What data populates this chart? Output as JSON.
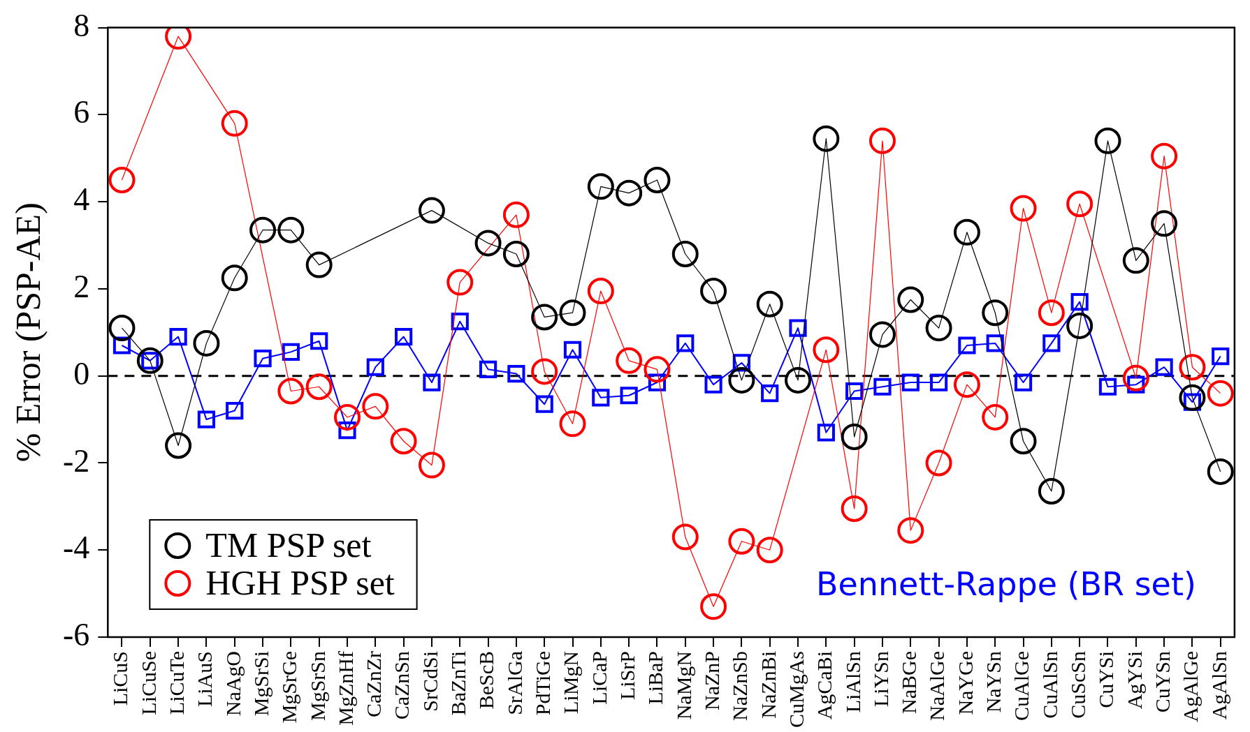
{
  "chart_data": {
    "type": "line",
    "ylabel": "% Error (PSP-AE)",
    "categories": [
      "LiCuS",
      "LiCuSe",
      "LiCuTe",
      "LiAuS",
      "NaAgO",
      "MgSrSi",
      "MgSrGe",
      "MgSrSn",
      "MgZnHf",
      "CaZnZr",
      "CaZnSn",
      "SrCdSi",
      "BaZnTi",
      "BeScB",
      "SrAlGa",
      "PdTiGe",
      "LiMgN",
      "LiCaP",
      "LiSrP",
      "LiBaP",
      "NaMgN",
      "NaZnP",
      "NaZnSb",
      "NaZnBi",
      "CuMgAs",
      "AgCaBi",
      "LiAlSn",
      "LiYSn",
      "NaBGe",
      "NaAlGe",
      "NaYGe",
      "NaYSn",
      "CuAlGe",
      "CuAlSn",
      "CuScSn",
      "CuYSi",
      "AgYSi",
      "CuYSn",
      "AgAlGe",
      "AgAlSn"
    ],
    "series": [
      {
        "name": "TM PSP set",
        "color": "#000000",
        "marker": "circle",
        "values": [
          1.1,
          0.35,
          -1.6,
          0.75,
          2.25,
          3.35,
          3.35,
          2.55,
          null,
          null,
          null,
          3.8,
          null,
          3.05,
          2.8,
          1.35,
          1.45,
          4.35,
          4.2,
          4.5,
          2.8,
          1.95,
          -0.1,
          1.65,
          -0.1,
          5.45,
          -1.4,
          0.95,
          1.75,
          1.1,
          3.3,
          1.45,
          -1.5,
          -2.65,
          1.15,
          5.4,
          2.65,
          3.5,
          -0.5,
          -2.2
        ]
      },
      {
        "name": "HGH PSP set",
        "color": "#ff0000",
        "marker": "circle",
        "values": [
          4.5,
          null,
          7.8,
          null,
          5.8,
          null,
          -0.35,
          -0.25,
          -0.95,
          -0.7,
          -1.5,
          -2.05,
          2.15,
          null,
          3.7,
          0.1,
          -1.1,
          1.95,
          0.35,
          0.15,
          -3.7,
          -5.3,
          -3.8,
          -4.0,
          null,
          0.6,
          -3.05,
          5.4,
          -3.55,
          -2.0,
          -0.2,
          -0.95,
          3.85,
          1.45,
          3.95,
          null,
          -0.05,
          5.05,
          0.2,
          -0.4
        ]
      },
      {
        "name": "Bennett-Rappe (BR set)",
        "color": "#0000ff",
        "marker": "square",
        "values": [
          0.7,
          0.35,
          0.9,
          -1.0,
          -0.8,
          0.4,
          0.55,
          0.8,
          -1.25,
          0.2,
          0.9,
          -0.15,
          1.25,
          0.15,
          0.05,
          -0.65,
          0.6,
          -0.5,
          -0.45,
          -0.15,
          0.75,
          -0.2,
          0.3,
          -0.4,
          1.1,
          -1.3,
          -0.35,
          -0.25,
          -0.15,
          -0.15,
          0.7,
          0.75,
          -0.15,
          0.75,
          1.7,
          -0.25,
          -0.2,
          0.2,
          -0.6,
          0.45
        ]
      }
    ],
    "ylim": [
      -6,
      8
    ],
    "yticks": [
      -6,
      -4,
      -2,
      0,
      2,
      4,
      6,
      8
    ],
    "ref_lines": [
      {
        "axis": "y",
        "value": 0,
        "color": "#000000",
        "line_style": "dashed"
      }
    ],
    "legend": "bottom left",
    "grid": false
  }
}
